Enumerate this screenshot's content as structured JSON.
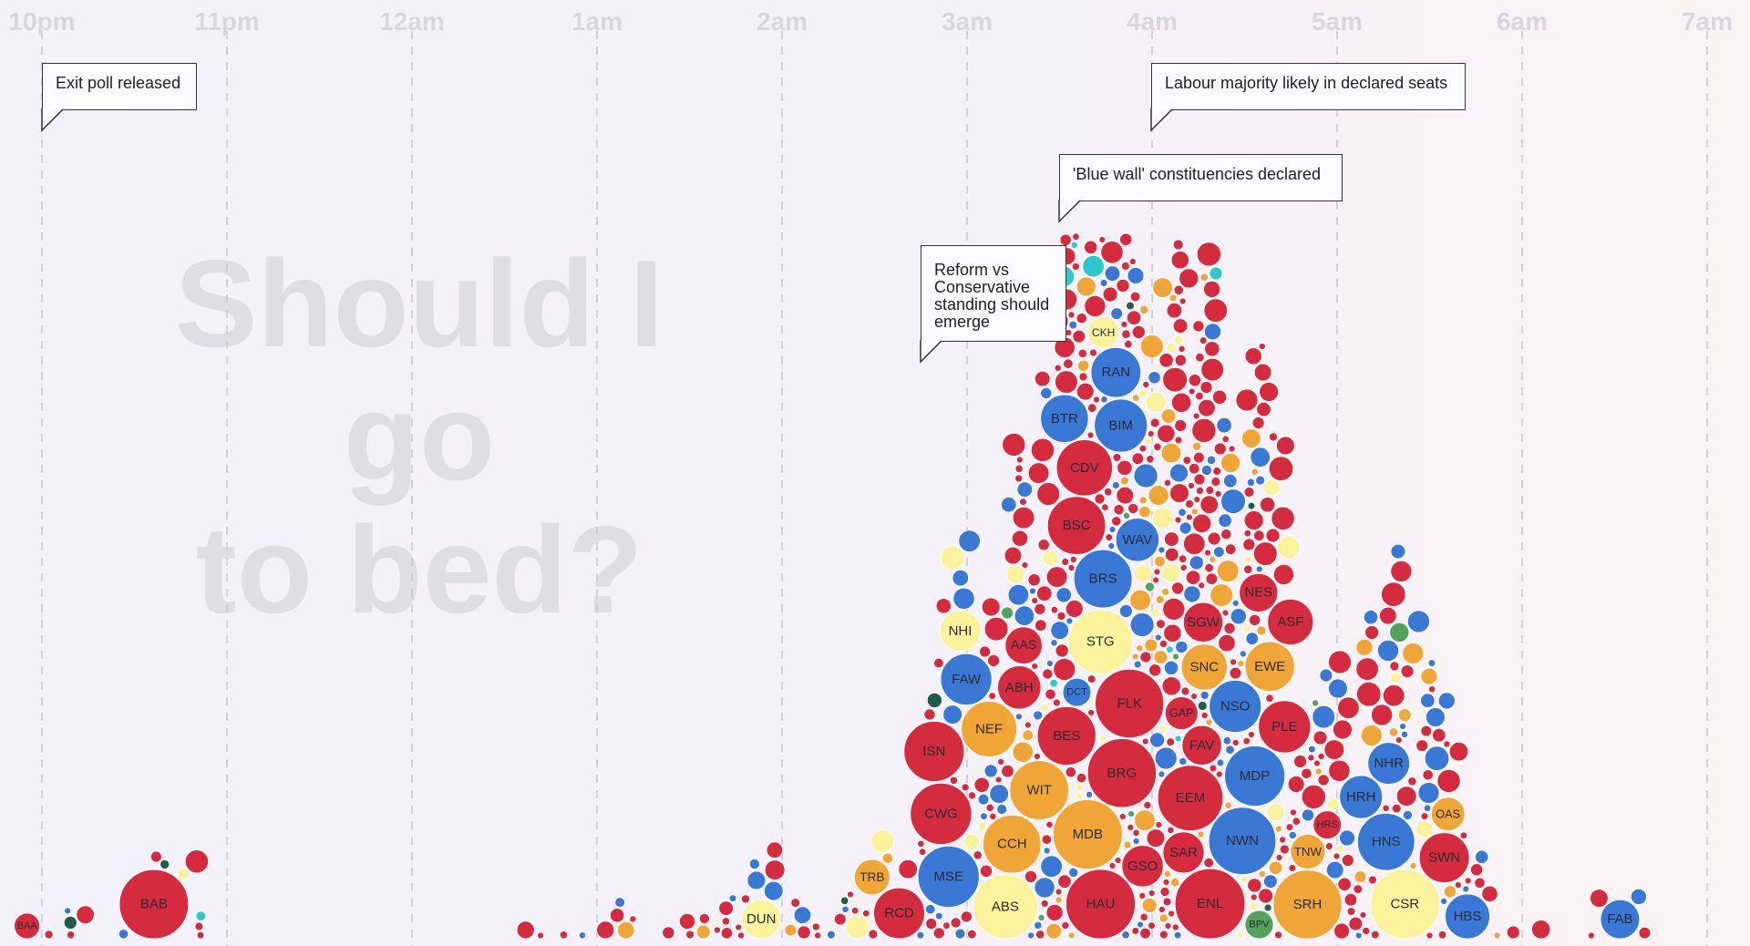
{
  "watermark_lines": [
    "Should I go",
    "to bed?"
  ],
  "annotations": [
    {
      "text": "Exit poll released",
      "time": 0.0
    },
    {
      "text": "Labour majority likely in declared seats",
      "time": 6.0
    },
    {
      "text": "'Blue wall' constituencies declared",
      "time": 5.5
    },
    {
      "text": "Reform vs Conservative standing should emerge",
      "time": 4.75
    }
  ],
  "colors": {
    "labour": "#d42b3f",
    "conservative": "#3a78d6",
    "libdem": "#f0a637",
    "green": "#52a35c",
    "reform": "#2ec7cc",
    "snp": "#fbf29c",
    "plaid": "#1f5c4a",
    "gridline": "#c7c5cf",
    "hour_label": "#d8d6e0",
    "watermark": "#dfdde5"
  },
  "chart_data": {
    "type": "scatter",
    "title": "Should I go to bed?",
    "x_axis": {
      "ticks": [
        "10pm",
        "11pm",
        "12am",
        "1am",
        "2am",
        "3am",
        "4am",
        "5am",
        "6am",
        "7am"
      ],
      "range": [
        "10pm",
        "7am"
      ]
    },
    "x_unit": "hours after 10pm",
    "encoding": "bubble = declared constituency; size = seat size; colour = winning party",
    "labeled_seats": [
      {
        "label": "BAA",
        "x": -0.1,
        "party": "labour"
      },
      {
        "label": "BAB",
        "x": 0.6,
        "party": "labour"
      },
      {
        "label": "DUN",
        "x": 3.9,
        "party": "snp"
      },
      {
        "label": "TRB",
        "x": 4.5,
        "party": "libdem"
      },
      {
        "label": "ISN",
        "x": 4.8,
        "party": "labour"
      },
      {
        "label": "RCD",
        "x": 4.65,
        "party": "labour"
      },
      {
        "label": "NHI",
        "x": 4.95,
        "party": "snp"
      },
      {
        "label": "CWG",
        "x": 4.85,
        "party": "labour"
      },
      {
        "label": "MSE",
        "x": 4.9,
        "party": "conservative"
      },
      {
        "label": "FAW",
        "x": 5.0,
        "party": "conservative"
      },
      {
        "label": "CCH",
        "x": 5.25,
        "party": "libdem"
      },
      {
        "label": "NEF",
        "x": 5.1,
        "party": "libdem"
      },
      {
        "label": "ABS",
        "x": 5.2,
        "party": "snp"
      },
      {
        "label": "AAS",
        "x": 5.3,
        "party": "labour"
      },
      {
        "label": "ABH",
        "x": 5.3,
        "party": "labour"
      },
      {
        "label": "WIT",
        "x": 5.38,
        "party": "libdem"
      },
      {
        "label": "BES",
        "x": 5.55,
        "party": "labour"
      },
      {
        "label": "DCT",
        "x": 5.6,
        "party": "conservative"
      },
      {
        "label": "BSC",
        "x": 5.6,
        "party": "labour"
      },
      {
        "label": "BTR",
        "x": 5.52,
        "party": "conservative"
      },
      {
        "label": "MDB",
        "x": 5.65,
        "party": "libdem"
      },
      {
        "label": "STG",
        "x": 5.72,
        "party": "snp"
      },
      {
        "label": "CKH",
        "x": 5.75,
        "party": "snp"
      },
      {
        "label": "RAN",
        "x": 5.78,
        "party": "conservative"
      },
      {
        "label": "HAU",
        "x": 5.73,
        "party": "labour"
      },
      {
        "label": "BRS",
        "x": 5.73,
        "party": "conservative"
      },
      {
        "label": "CDV",
        "x": 5.62,
        "party": "labour"
      },
      {
        "label": "BIM",
        "x": 5.85,
        "party": "conservative"
      },
      {
        "label": "BRG",
        "x": 5.85,
        "party": "labour"
      },
      {
        "label": "FLK",
        "x": 5.88,
        "party": "labour"
      },
      {
        "label": "WAV",
        "x": 5.9,
        "party": "conservative"
      },
      {
        "label": "GSO",
        "x": 5.93,
        "party": "labour"
      },
      {
        "label": "EEM",
        "x": 6.2,
        "party": "labour"
      },
      {
        "label": "SAR",
        "x": 6.15,
        "party": "labour"
      },
      {
        "label": "GAP",
        "x": 6.15,
        "party": "labour"
      },
      {
        "label": "FAV",
        "x": 6.28,
        "party": "labour"
      },
      {
        "label": "SNC",
        "x": 6.3,
        "party": "libdem"
      },
      {
        "label": "SGW",
        "x": 6.3,
        "party": "labour"
      },
      {
        "label": "ENL",
        "x": 6.32,
        "party": "labour"
      },
      {
        "label": "NSO",
        "x": 6.47,
        "party": "conservative"
      },
      {
        "label": "MDP",
        "x": 6.56,
        "party": "conservative"
      },
      {
        "label": "NWN",
        "x": 6.47,
        "party": "conservative"
      },
      {
        "label": "BPV",
        "x": 6.56,
        "party": "green"
      },
      {
        "label": "NES",
        "x": 6.6,
        "party": "labour"
      },
      {
        "label": "PLE",
        "x": 6.7,
        "party": "labour"
      },
      {
        "label": "EWE",
        "x": 6.65,
        "party": "libdem"
      },
      {
        "label": "ASF",
        "x": 6.75,
        "party": "labour"
      },
      {
        "label": "TNW",
        "x": 6.83,
        "party": "libdem"
      },
      {
        "label": "SRH",
        "x": 6.82,
        "party": "libdem"
      },
      {
        "label": "HRS",
        "x": 6.96,
        "party": "labour"
      },
      {
        "label": "HRH",
        "x": 7.11,
        "party": "conservative"
      },
      {
        "label": "NHR",
        "x": 7.26,
        "party": "conservative"
      },
      {
        "label": "HNS",
        "x": 7.27,
        "party": "conservative"
      },
      {
        "label": "CSR",
        "x": 7.37,
        "party": "snp"
      },
      {
        "label": "SWN",
        "x": 7.6,
        "party": "labour"
      },
      {
        "label": "OAS",
        "x": 7.6,
        "party": "libdem"
      },
      {
        "label": "HBS",
        "x": 7.7,
        "party": "conservative"
      },
      {
        "label": "FAB",
        "x": 8.55,
        "party": "conservative"
      }
    ]
  }
}
